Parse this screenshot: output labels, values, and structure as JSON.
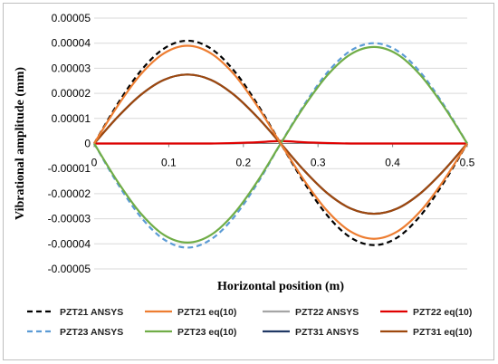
{
  "chart_data": {
    "type": "line",
    "title": "",
    "xlabel": "Horizontal position (m)",
    "ylabel": "Vibrational amplitude (mm)",
    "xlim": [
      0,
      0.5
    ],
    "ylim": [
      -5e-05,
      5e-05
    ],
    "x_ticks": [
      0,
      0.1,
      0.2,
      0.3,
      0.4,
      0.5
    ],
    "x_tick_labels": [
      "0",
      "0.1",
      "0.2",
      "0.3",
      "0.4",
      "0.5"
    ],
    "y_ticks": [
      5e-05,
      4e-05,
      3e-05,
      2e-05,
      1e-05,
      0,
      -1e-05,
      -2e-05,
      -3e-05,
      -4e-05,
      -5e-05
    ],
    "y_tick_labels": [
      "0.00005",
      "0.00004",
      "0.00003",
      "0.00002",
      "0.00001",
      "0",
      "-0.00001",
      "-0.00002",
      "-0.00003",
      "-0.00004",
      "-0.00005"
    ],
    "grid": "horizontal",
    "legend_position": "bottom",
    "x": [
      0,
      0.03125,
      0.0625,
      0.09375,
      0.125,
      0.15625,
      0.1875,
      0.21875,
      0.25,
      0.28125,
      0.3125,
      0.34375,
      0.375,
      0.40625,
      0.4375,
      0.46875,
      0.5
    ],
    "series": [
      {
        "name": "PZT21 ANSYS",
        "color": "#000000",
        "dash": "dashed",
        "values": [
          0,
          1.57e-05,
          2.9e-05,
          3.79e-05,
          4.1e-05,
          3.79e-05,
          2.9e-05,
          1.57e-05,
          0,
          -1.55e-05,
          -2.87e-05,
          -3.75e-05,
          -4.05e-05,
          -3.75e-05,
          -2.87e-05,
          -1.55e-05,
          0
        ]
      },
      {
        "name": "PZT21 eq(10)",
        "color": "#ed7d31",
        "dash": "solid",
        "values": [
          0,
          1.49e-05,
          2.76e-05,
          3.6e-05,
          3.9e-05,
          3.6e-05,
          2.76e-05,
          1.49e-05,
          0,
          -1.46e-05,
          -2.69e-05,
          -3.51e-05,
          -3.8e-05,
          -3.51e-05,
          -2.69e-05,
          -1.46e-05,
          0
        ]
      },
      {
        "name": "PZT22 ANSYS",
        "color": "#a5a5a5",
        "dash": "solid",
        "values": [
          0,
          0,
          0,
          0,
          0,
          0,
          0,
          4e-07,
          1e-06,
          4e-07,
          0,
          0,
          0,
          0,
          0,
          0,
          0
        ]
      },
      {
        "name": "PZT22 eq(10)",
        "color": "#e00000",
        "dash": "solid",
        "values": [
          0,
          0,
          0,
          0,
          0,
          0,
          2e-07,
          5e-07,
          1e-06,
          5e-07,
          2e-07,
          0,
          0,
          0,
          0,
          0,
          0
        ]
      },
      {
        "name": "PZT23 ANSYS",
        "color": "#5b9bd5",
        "dash": "dashed",
        "values": [
          0,
          -1.59e-05,
          -2.93e-05,
          -3.83e-05,
          -4.15e-05,
          -3.83e-05,
          -2.93e-05,
          -1.59e-05,
          0,
          1.53e-05,
          2.83e-05,
          3.7e-05,
          4e-05,
          3.7e-05,
          2.83e-05,
          1.53e-05,
          0
        ]
      },
      {
        "name": "PZT23 eq(10)",
        "color": "#70ad47",
        "dash": "solid",
        "values": [
          0,
          -1.51e-05,
          -2.79e-05,
          -3.65e-05,
          -3.95e-05,
          -3.65e-05,
          -2.79e-05,
          -1.51e-05,
          0,
          1.47e-05,
          2.72e-05,
          3.56e-05,
          3.85e-05,
          3.56e-05,
          2.72e-05,
          1.47e-05,
          0
        ]
      },
      {
        "name": "PZT31 ANSYS",
        "color": "#203864",
        "dash": "solid",
        "values": [
          0,
          1.05e-05,
          1.94e-05,
          2.54e-05,
          2.75e-05,
          2.54e-05,
          1.94e-05,
          1.05e-05,
          0,
          -1.07e-05,
          -1.98e-05,
          -2.59e-05,
          -2.8e-05,
          -2.59e-05,
          -1.98e-05,
          -1.07e-05,
          0
        ]
      },
      {
        "name": "PZT31 eq(10)",
        "color": "#9e480e",
        "dash": "solid",
        "values": [
          0,
          1.05e-05,
          1.94e-05,
          2.54e-05,
          2.75e-05,
          2.54e-05,
          1.94e-05,
          1.05e-05,
          0,
          -1.07e-05,
          -1.98e-05,
          -2.59e-05,
          -2.8e-05,
          -2.59e-05,
          -1.98e-05,
          -1.07e-05,
          0
        ]
      }
    ]
  }
}
